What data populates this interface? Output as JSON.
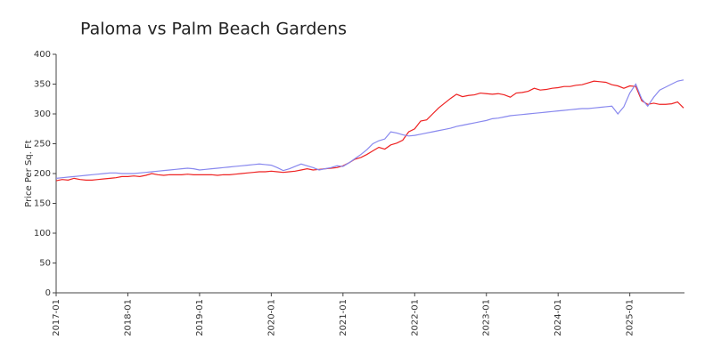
{
  "chart_data": {
    "type": "line",
    "title": "Paloma vs Palm Beach Gardens",
    "y_label": "Price Per Sq. Ft",
    "x": [
      "2017-01",
      "2017-02",
      "2017-03",
      "2017-04",
      "2017-05",
      "2017-06",
      "2017-07",
      "2017-08",
      "2017-09",
      "2017-10",
      "2017-11",
      "2017-12",
      "2018-01",
      "2018-02",
      "2018-03",
      "2018-04",
      "2018-05",
      "2018-06",
      "2018-07",
      "2018-08",
      "2018-09",
      "2018-10",
      "2018-11",
      "2018-12",
      "2019-01",
      "2019-02",
      "2019-03",
      "2019-04",
      "2019-05",
      "2019-06",
      "2019-07",
      "2019-08",
      "2019-09",
      "2019-10",
      "2019-11",
      "2019-12",
      "2020-01",
      "2020-02",
      "2020-03",
      "2020-04",
      "2020-05",
      "2020-06",
      "2020-07",
      "2020-08",
      "2020-09",
      "2020-10",
      "2020-11",
      "2020-12",
      "2021-01",
      "2021-02",
      "2021-03",
      "2021-04",
      "2021-05",
      "2021-06",
      "2021-07",
      "2021-08",
      "2021-09",
      "2021-10",
      "2021-11",
      "2021-12",
      "2022-01",
      "2022-02",
      "2022-03",
      "2022-04",
      "2022-05",
      "2022-06",
      "2022-07",
      "2022-08",
      "2022-09",
      "2022-10",
      "2022-11",
      "2022-12",
      "2023-01",
      "2023-02",
      "2023-03",
      "2023-04",
      "2023-05",
      "2023-06",
      "2023-07",
      "2023-08",
      "2023-09",
      "2023-10",
      "2023-11",
      "2023-12",
      "2024-01",
      "2024-02",
      "2024-03",
      "2024-04",
      "2024-05",
      "2024-06",
      "2024-07",
      "2024-08",
      "2024-09",
      "2024-10",
      "2024-11",
      "2024-12",
      "2025-01",
      "2025-02",
      "2025-03",
      "2025-04",
      "2025-05",
      "2025-06",
      "2025-07",
      "2025-08",
      "2025-09",
      "2025-10"
    ],
    "series": [
      {
        "color": "#ee2222",
        "values": [
          188,
          190,
          189,
          192,
          190,
          189,
          189,
          190,
          191,
          192,
          193,
          195,
          195,
          196,
          195,
          197,
          200,
          198,
          197,
          198,
          198,
          198,
          199,
          198,
          198,
          198,
          198,
          197,
          198,
          198,
          199,
          200,
          201,
          202,
          203,
          203,
          204,
          203,
          202,
          203,
          204,
          206,
          208,
          206,
          207,
          208,
          209,
          210,
          213,
          218,
          224,
          227,
          232,
          238,
          244,
          241,
          248,
          251,
          256,
          270,
          275,
          288,
          290,
          300,
          310,
          318,
          326,
          333,
          329,
          331,
          332,
          335,
          334,
          333,
          334,
          332,
          328,
          335,
          336,
          338,
          343,
          340,
          341,
          343,
          344,
          346,
          346,
          348,
          349,
          352,
          355,
          354,
          353,
          349,
          347,
          343,
          347,
          346,
          322,
          316,
          318,
          316,
          316,
          317,
          320,
          310
        ]
      },
      {
        "color": "#8888ee",
        "values": [
          192,
          193,
          194,
          195,
          196,
          197,
          198,
          199,
          200,
          201,
          201,
          200,
          200,
          200,
          201,
          202,
          203,
          204,
          205,
          206,
          207,
          208,
          209,
          208,
          206,
          207,
          208,
          209,
          210,
          211,
          212,
          213,
          214,
          215,
          216,
          215,
          214,
          210,
          205,
          208,
          212,
          216,
          213,
          210,
          206,
          208,
          210,
          213,
          212,
          218,
          225,
          232,
          240,
          250,
          255,
          258,
          270,
          268,
          265,
          263,
          264,
          266,
          268,
          270,
          272,
          274,
          276,
          279,
          281,
          283,
          285,
          287,
          289,
          292,
          293,
          295,
          297,
          298,
          299,
          300,
          301,
          302,
          303,
          304,
          305,
          306,
          307,
          308,
          309,
          309,
          310,
          311,
          312,
          313,
          300,
          312,
          335,
          350,
          325,
          313,
          328,
          340,
          345,
          350,
          355,
          357
        ]
      }
    ],
    "xlim": [
      "2017-01",
      "2025-10"
    ],
    "xticks": [
      "2017-01",
      "2018-01",
      "2019-01",
      "2020-01",
      "2021-01",
      "2022-01",
      "2023-01",
      "2024-01",
      "2025-01"
    ],
    "ylim": [
      0,
      400
    ],
    "yticks": [
      0,
      50,
      100,
      150,
      200,
      250,
      300,
      350,
      400
    ]
  }
}
